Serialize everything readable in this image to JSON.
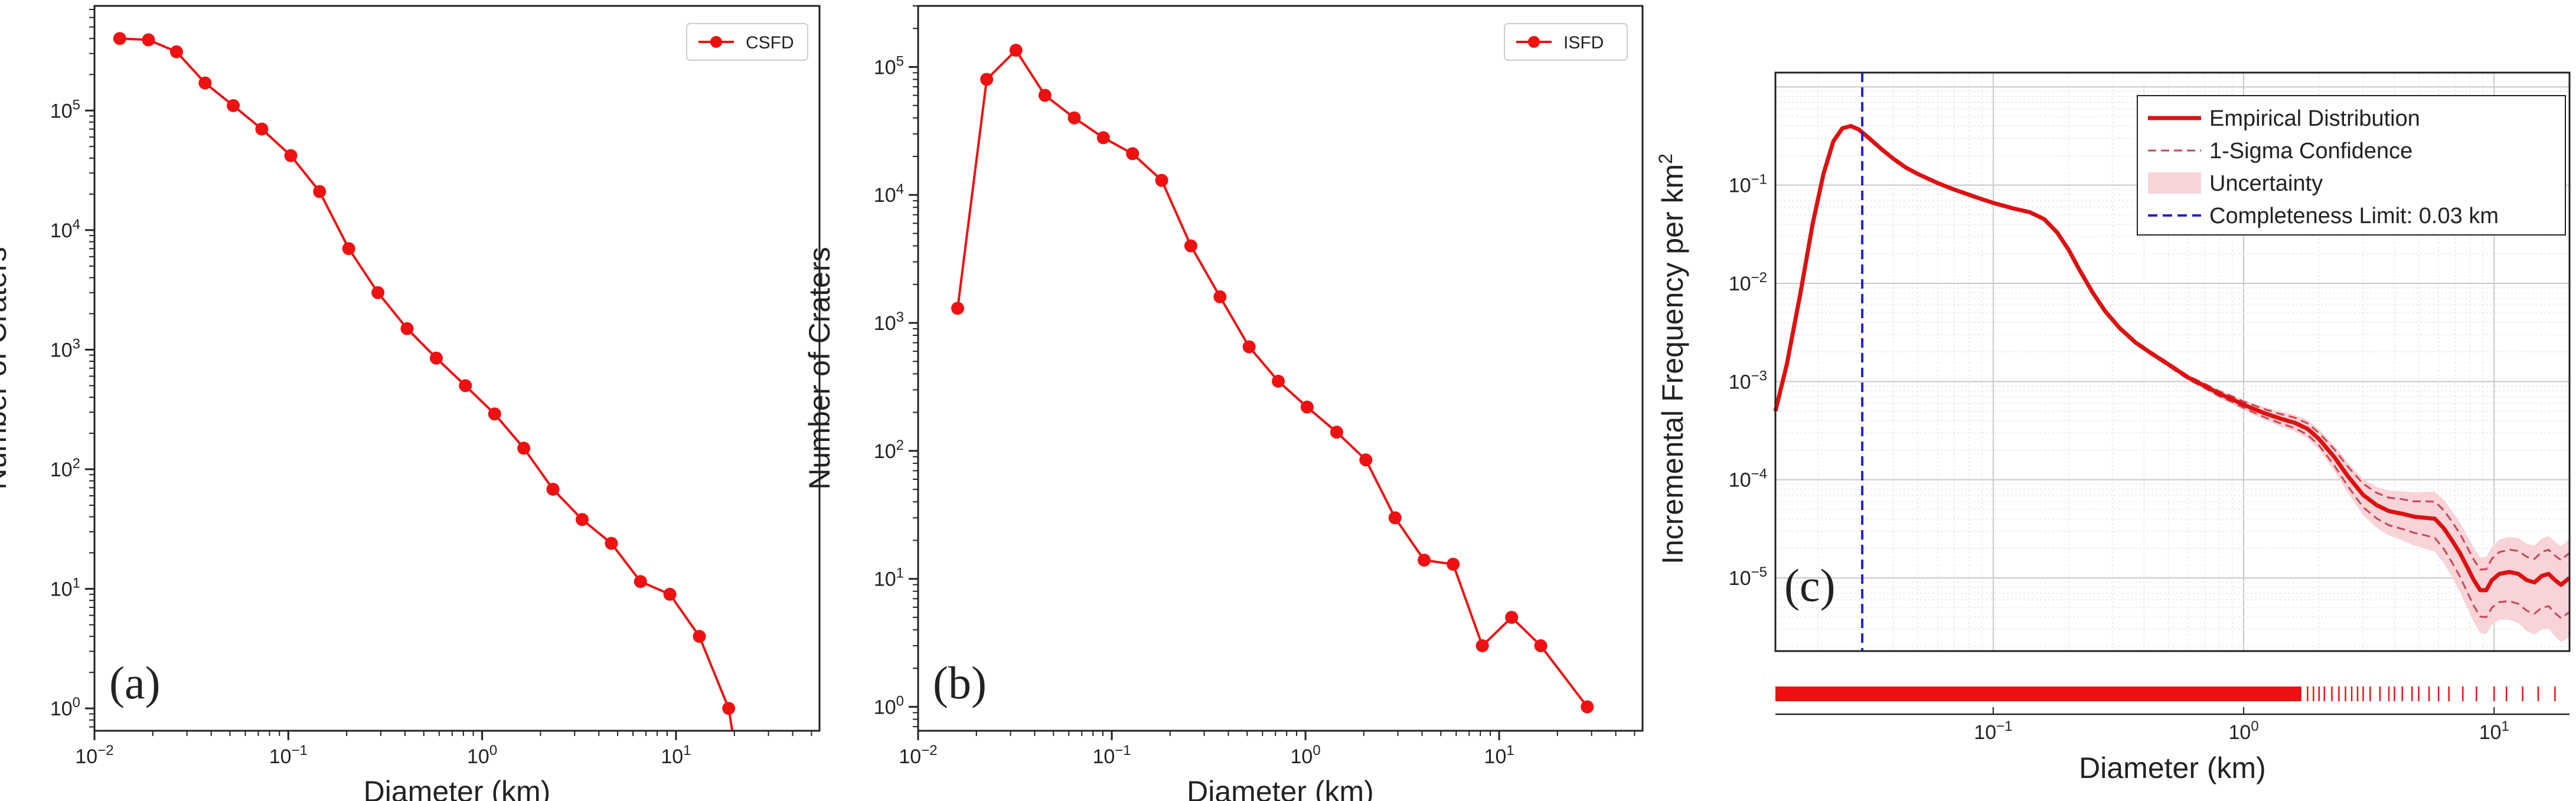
{
  "chart_data": [
    {
      "type": "line",
      "panel_label": "(a)",
      "xlabel": "Diameter (km)",
      "ylabel": "Number of Craters",
      "xscale": "log",
      "yscale": "log",
      "xlim": [
        0.01,
        55
      ],
      "ylim": [
        0.65,
        750000
      ],
      "x_ticks": [
        {
          "base": "10",
          "exp": "−2",
          "value": 0.01
        },
        {
          "base": "10",
          "exp": "−1",
          "value": 0.1
        },
        {
          "base": "10",
          "exp": "0",
          "value": 1
        },
        {
          "base": "10",
          "exp": "1",
          "value": 10
        }
      ],
      "y_ticks": [
        {
          "base": "10",
          "exp": "0",
          "value": 1
        },
        {
          "base": "10",
          "exp": "1",
          "value": 10
        },
        {
          "base": "10",
          "exp": "2",
          "value": 100
        },
        {
          "base": "10",
          "exp": "3",
          "value": 1000
        },
        {
          "base": "10",
          "exp": "4",
          "value": 10000
        },
        {
          "base": "10",
          "exp": "5",
          "value": 100000
        }
      ],
      "legend": {
        "label": "CSFD",
        "placement": "top-right"
      },
      "series": [
        {
          "name": "CSFD",
          "color": "#ee1111",
          "x": [
            0.0135,
            0.019,
            0.0265,
            0.0372,
            0.052,
            0.073,
            0.103,
            0.145,
            0.205,
            0.29,
            0.41,
            0.58,
            0.82,
            1.16,
            1.64,
            2.32,
            3.28,
            4.64,
            6.56,
            9.3,
            13.2,
            18.7
          ],
          "y": [
            400000,
            390000,
            310000,
            170000,
            110000,
            70000,
            42000,
            21000,
            7000,
            3000,
            1500,
            850,
            500,
            290,
            150,
            68,
            38,
            24,
            11.5,
            9,
            4,
            1
          ]
        }
      ],
      "tail_to_axis_x": 19.5
    },
    {
      "type": "line",
      "panel_label": "(b)",
      "xlabel": "Diameter (km)",
      "ylabel": "Number of Craters",
      "xscale": "log",
      "yscale": "log",
      "xlim": [
        0.01,
        55
      ],
      "ylim": [
        0.65,
        300000
      ],
      "x_ticks": [
        {
          "base": "10",
          "exp": "−2",
          "value": 0.01
        },
        {
          "base": "10",
          "exp": "−1",
          "value": 0.1
        },
        {
          "base": "10",
          "exp": "0",
          "value": 1
        },
        {
          "base": "10",
          "exp": "1",
          "value": 10
        }
      ],
      "y_ticks": [
        {
          "base": "10",
          "exp": "0",
          "value": 1
        },
        {
          "base": "10",
          "exp": "1",
          "value": 10
        },
        {
          "base": "10",
          "exp": "2",
          "value": 100
        },
        {
          "base": "10",
          "exp": "3",
          "value": 1000
        },
        {
          "base": "10",
          "exp": "4",
          "value": 10000
        },
        {
          "base": "10",
          "exp": "5",
          "value": 100000
        }
      ],
      "legend": {
        "label": "ISFD",
        "placement": "top-right"
      },
      "series": [
        {
          "name": "ISFD",
          "color": "#ee1111",
          "x": [
            0.016,
            0.0226,
            0.032,
            0.0452,
            0.064,
            0.0905,
            0.128,
            0.181,
            0.256,
            0.362,
            0.512,
            0.724,
            1.02,
            1.45,
            2.05,
            2.9,
            4.1,
            5.79,
            8.19,
            11.6,
            16.4,
            28.5
          ],
          "y": [
            1300,
            80000,
            135000,
            60000,
            40000,
            28000,
            21000,
            13000,
            4000,
            1600,
            650,
            350,
            220,
            140,
            85,
            30,
            14,
            13,
            3,
            5,
            3,
            1
          ]
        }
      ]
    },
    {
      "type": "line",
      "panel_label": "(c)",
      "xlabel": "Diameter (km)",
      "ylabel": "Incremental Frequency per km",
      "ylabel_sup": "2",
      "xscale": "log",
      "yscale": "log",
      "xlim": [
        0.0135,
        20
      ],
      "ylim": [
        1.8e-06,
        1.4
      ],
      "grid": true,
      "x_ticks": [
        {
          "base": "10",
          "exp": "−1",
          "value": 0.1
        },
        {
          "base": "10",
          "exp": "0",
          "value": 1
        },
        {
          "base": "10",
          "exp": "1",
          "value": 10
        }
      ],
      "y_ticks": [
        {
          "base": "10",
          "exp": "−5",
          "value": 1e-05
        },
        {
          "base": "10",
          "exp": "−4",
          "value": 0.0001
        },
        {
          "base": "10",
          "exp": "−3",
          "value": 0.001
        },
        {
          "base": "10",
          "exp": "−2",
          "value": 0.01
        },
        {
          "base": "10",
          "exp": "−1",
          "value": 0.1
        }
      ],
      "legend": {
        "placement": "top-right",
        "items": [
          {
            "label": "Empirical Distribution",
            "style": "solid",
            "color": "#dd1111"
          },
          {
            "label": "1-Sigma Confidence",
            "style": "dashed",
            "color": "#cc4455"
          },
          {
            "label": "Uncertainty",
            "style": "band",
            "color": "#f8d4d8"
          },
          {
            "label": "Completeness Limit: 0.03 km",
            "style": "dashed",
            "color": "#2222cc"
          }
        ]
      },
      "completeness_limit_km": 0.03,
      "series": [
        {
          "name": "Empirical Distribution",
          "x": [
            0.0135,
            0.015,
            0.017,
            0.019,
            0.021,
            0.023,
            0.025,
            0.027,
            0.029,
            0.032,
            0.036,
            0.04,
            0.045,
            0.05,
            0.06,
            0.07,
            0.08,
            0.09,
            0.1,
            0.12,
            0.14,
            0.16,
            0.18,
            0.2,
            0.22,
            0.25,
            0.28,
            0.32,
            0.37,
            0.42,
            0.5,
            0.6,
            0.7,
            0.8,
            0.9,
            1.0,
            1.2,
            1.4,
            1.6,
            1.8,
            2.0,
            2.3,
            2.6,
            3.0,
            3.4,
            3.8,
            4.3,
            4.8,
            5.3,
            5.8,
            6.3,
            6.8,
            7.3,
            7.8,
            8.3,
            8.8,
            9.3,
            9.8,
            10.5,
            11.5,
            12.5,
            13.5,
            14.5,
            15.5,
            16.5,
            17.5,
            18.5,
            19.5,
            20
          ],
          "y": [
            0.0005,
            0.0015,
            0.008,
            0.04,
            0.13,
            0.28,
            0.38,
            0.4,
            0.37,
            0.3,
            0.23,
            0.185,
            0.15,
            0.13,
            0.105,
            0.09,
            0.08,
            0.072,
            0.066,
            0.058,
            0.053,
            0.045,
            0.033,
            0.022,
            0.014,
            0.008,
            0.0052,
            0.0035,
            0.0025,
            0.002,
            0.0015,
            0.0011,
            0.0009,
            0.00075,
            0.00066,
            0.00058,
            0.00048,
            0.00042,
            0.00038,
            0.00033,
            0.00026,
            0.00017,
            0.00011,
            7e-05,
            5.5e-05,
            4.8e-05,
            4.5e-05,
            4.2e-05,
            4.1e-05,
            4e-05,
            3.2e-05,
            2.4e-05,
            1.8e-05,
            1.3e-05,
            9.5e-06,
            7.5e-06,
            7.5e-06,
            9.5e-06,
            1.1e-05,
            1.15e-05,
            1.1e-05,
            9.5e-06,
            9e-06,
            1.05e-05,
            1.1e-05,
            9.5e-06,
            8.5e-06,
            9.5e-06,
            1e-05
          ]
        }
      ],
      "ci_relative": {
        "x": [
          0.0135,
          0.6,
          1.0,
          2.0,
          3.0,
          5.0,
          8.0,
          12.0,
          20.0
        ],
        "upper": [
          1.0,
          1.04,
          1.08,
          1.15,
          1.3,
          1.45,
          1.6,
          1.7,
          1.8
        ],
        "lower": [
          1.0,
          0.96,
          0.93,
          0.86,
          0.75,
          0.68,
          0.55,
          0.5,
          0.45
        ],
        "band_upper": [
          1.0,
          1.06,
          1.12,
          1.25,
          1.45,
          1.8,
          2.1,
          2.3,
          2.5
        ],
        "band_lower": [
          1.0,
          0.94,
          0.88,
          0.78,
          0.62,
          0.5,
          0.38,
          0.32,
          0.25
        ]
      }
    }
  ]
}
